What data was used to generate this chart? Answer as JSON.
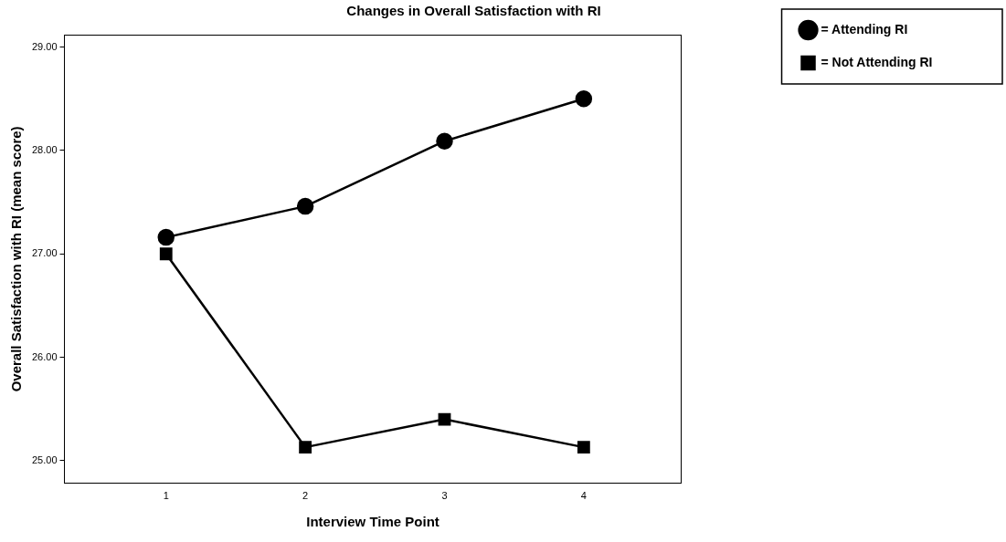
{
  "chart_data": {
    "type": "line",
    "title": "Changes in Overall Satisfaction with RI",
    "xlabel": "Interview Time Point",
    "ylabel": "Overall Satisfaction with RI (mean score)",
    "x": [
      1,
      2,
      3,
      4
    ],
    "xlim": [
      0.27,
      4.7
    ],
    "xticks": [
      1,
      2,
      3,
      4
    ],
    "ylim": [
      24.78,
      29.12
    ],
    "yticks": [
      {
        "value": 25,
        "label": "25.00"
      },
      {
        "value": 26,
        "label": "26.00"
      },
      {
        "value": 27,
        "label": "27.00"
      },
      {
        "value": 28,
        "label": "28.00"
      },
      {
        "value": 29,
        "label": "29.00"
      }
    ],
    "series": [
      {
        "name": "= Attending RI",
        "color": "#000000",
        "marker": "circle",
        "values": [
          27.16,
          27.46,
          28.09,
          28.5
        ]
      },
      {
        "name": "= Not Attending RI",
        "color": "#000000",
        "marker": "square",
        "values": [
          27.0,
          25.13,
          25.4,
          25.13
        ]
      }
    ],
    "grid": false,
    "legend": "top right",
    "line_style": "solid"
  }
}
